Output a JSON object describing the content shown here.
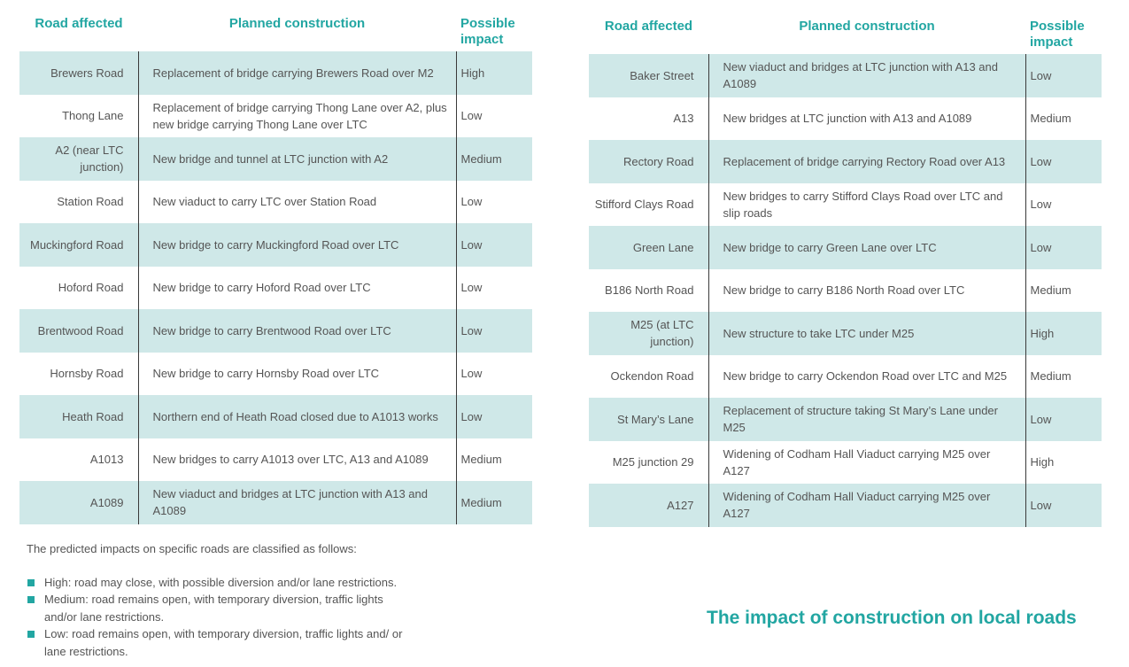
{
  "headers": {
    "road": "Road affected",
    "construction": "Planned construction",
    "impact_line1": "Possible",
    "impact_line2": "impact"
  },
  "left_rows": [
    {
      "road": "Brewers Road",
      "construction": "Replacement of bridge carrying Brewers Road over M2",
      "impact": "High"
    },
    {
      "road": "Thong Lane",
      "construction": "Replacement of bridge carrying Thong Lane over A2, plus new bridge carrying Thong Lane over LTC",
      "impact": "Low"
    },
    {
      "road": "A2 (near LTC junction)",
      "construction": "New bridge and tunnel at LTC junction with A2",
      "impact": "Medium"
    },
    {
      "road": "Station Road",
      "construction": "New viaduct to carry LTC over Station Road",
      "impact": "Low"
    },
    {
      "road": "Muckingford Road",
      "construction": "New bridge to carry Muckingford Road over LTC",
      "impact": "Low"
    },
    {
      "road": "Hoford Road",
      "construction": "New bridge to carry Hoford Road over LTC",
      "impact": "Low"
    },
    {
      "road": "Brentwood Road",
      "construction": "New bridge to carry Brentwood Road over LTC",
      "impact": "Low"
    },
    {
      "road": "Hornsby Road",
      "construction": "New bridge to carry Hornsby Road over LTC",
      "impact": "Low"
    },
    {
      "road": "Heath Road",
      "construction": "Northern end of Heath Road closed due to A1013 works",
      "impact": "Low"
    },
    {
      "road": "A1013",
      "construction": "New bridges to carry A1013 over LTC, A13 and A1089",
      "impact": "Medium"
    },
    {
      "road": "A1089",
      "construction": "New viaduct and bridges at LTC junction with A13 and A1089",
      "impact": "Medium"
    }
  ],
  "right_rows": [
    {
      "road": "Baker Street",
      "construction": "New viaduct and bridges at LTC junction with A13 and A1089",
      "impact": "Low"
    },
    {
      "road": "A13",
      "construction": "New bridges at LTC junction with A13 and A1089",
      "impact": "Medium"
    },
    {
      "road": "Rectory Road",
      "construction": "Replacement of bridge carrying Rectory Road over A13",
      "impact": "Low"
    },
    {
      "road": "Stifford Clays Road",
      "construction": "New bridges to carry Stifford Clays Road over LTC and slip roads",
      "impact": "Low"
    },
    {
      "road": "Green Lane",
      "construction": "New bridge to carry Green Lane over LTC",
      "impact": "Low"
    },
    {
      "road": "B186 North Road",
      "construction": "New bridge to carry B186 North Road over LTC",
      "impact": "Medium"
    },
    {
      "road": "M25 (at LTC junction)",
      "construction": "New structure to take LTC under M25",
      "impact": "High"
    },
    {
      "road": "Ockendon Road",
      "construction": "New bridge to carry Ockendon Road over LTC and M25",
      "impact": "Medium"
    },
    {
      "road": "St Mary’s Lane",
      "construction": "Replacement of structure taking St Mary’s Lane under M25",
      "impact": "Low"
    },
    {
      "road": "M25 junction 29",
      "construction": "Widening of Codham Hall Viaduct carrying M25 over A127",
      "impact": "High"
    },
    {
      "road": "A127",
      "construction": "Widening of Codham Hall Viaduct carrying M25 over A127",
      "impact": "Low"
    }
  ],
  "notes": {
    "intro": "The predicted impacts on specific roads are classified as follows:",
    "items": [
      "High: road may close, with possible diversion and/or lane restrictions.",
      "Medium: road remains open, with temporary diversion, traffic lights and/or lane restrictions.",
      "Low: road remains open, with temporary diversion, traffic lights and/ or lane restrictions."
    ]
  },
  "title": "The impact of construction on local roads",
  "colors": {
    "accent": "#22a6a2",
    "row_shade": "#cfe8e8",
    "text": "#555555"
  }
}
